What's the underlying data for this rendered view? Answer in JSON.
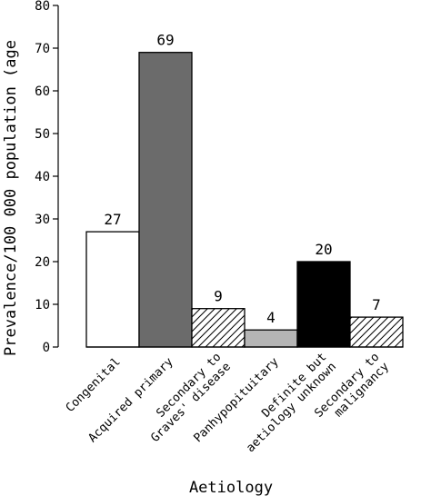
{
  "chart_data": {
    "type": "bar",
    "title": "",
    "xlabel": "Aetiology",
    "ylabel": "Prevalence/100 000 population (age",
    "ylim": [
      0,
      80
    ],
    "yticks": [
      0,
      10,
      20,
      30,
      40,
      50,
      60,
      70,
      80
    ],
    "grid": false,
    "categories": [
      [
        "Congenital"
      ],
      [
        "Acquired primary"
      ],
      [
        "Secondary to",
        "Graves' disease"
      ],
      [
        "Panhypopituitary"
      ],
      [
        "Definite but",
        "aetiology unknown"
      ],
      [
        "Secondary to",
        "malignancy"
      ]
    ],
    "values": [
      27,
      69,
      9,
      4,
      20,
      7
    ],
    "data_labels": [
      "27",
      "69",
      "9",
      "4",
      "20",
      "7"
    ],
    "fills": [
      "white",
      "dark-gray",
      "hatched",
      "light-gray",
      "black",
      "hatched"
    ],
    "colors": {
      "white": "#ffffff",
      "dark-gray": "#6b6b6b",
      "light-gray": "#b5b5b5",
      "black": "#000000",
      "hatch-stroke": "#000000"
    }
  }
}
